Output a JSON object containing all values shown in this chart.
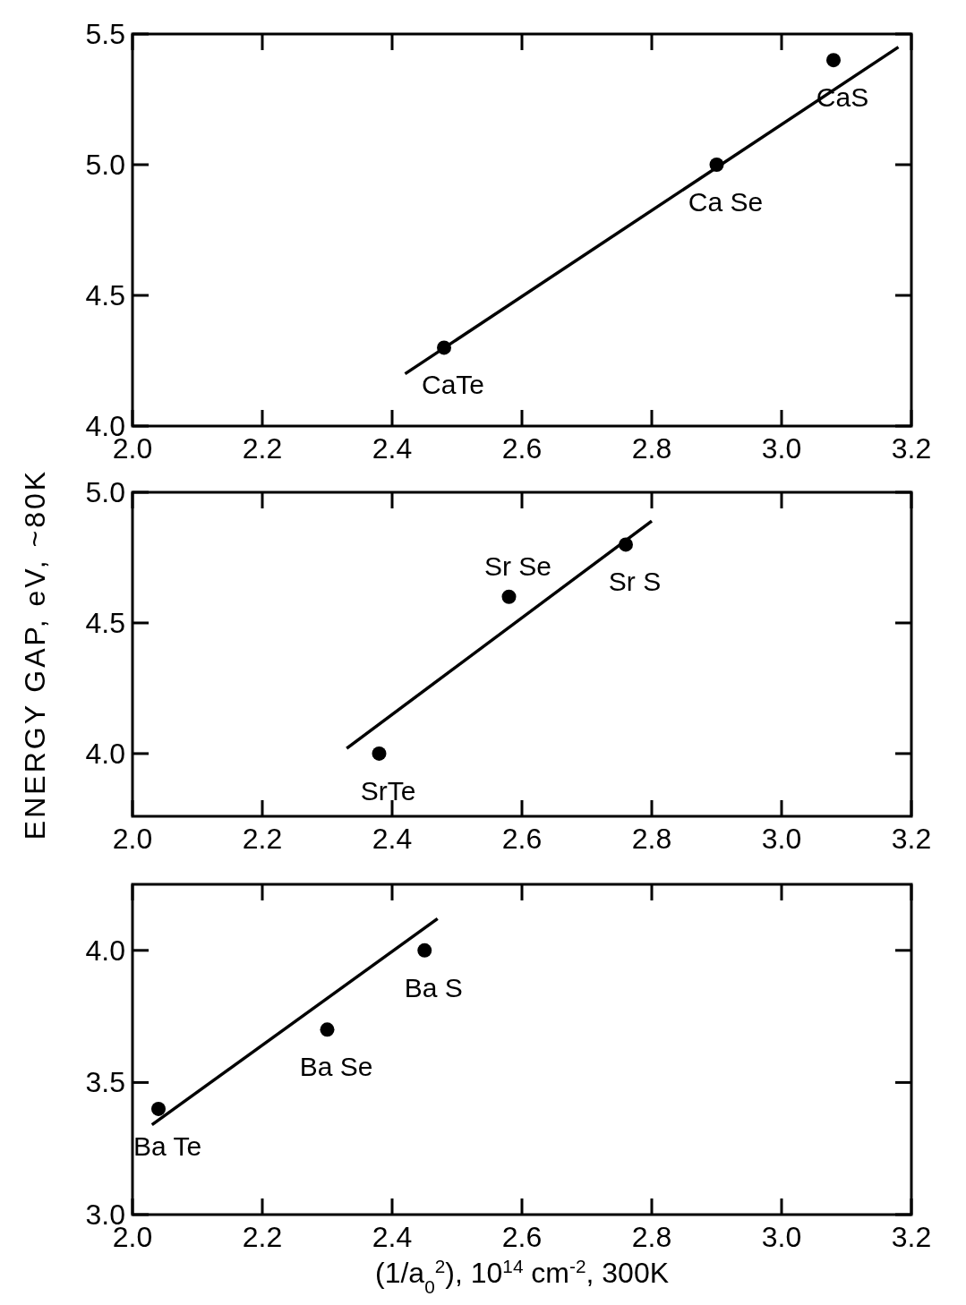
{
  "chart_data": [
    {
      "type": "scatter",
      "xlim": [
        2.0,
        3.2
      ],
      "ylim": [
        4.0,
        5.5
      ],
      "grid": false,
      "xticks": [
        {
          "value": 2.0,
          "label": "2.0"
        },
        {
          "value": 2.2,
          "label": "2.2"
        },
        {
          "value": 2.4,
          "label": "2.4"
        },
        {
          "value": 2.6,
          "label": "2.6"
        },
        {
          "value": 2.8,
          "label": "2.8"
        },
        {
          "value": 3.0,
          "label": "3.0"
        },
        {
          "value": 3.2,
          "label": "3.2"
        }
      ],
      "yticks": [
        {
          "value": 4.0,
          "label": "4.0"
        },
        {
          "value": 4.5,
          "label": "4.5"
        },
        {
          "value": 5.0,
          "label": "5.0"
        },
        {
          "value": 5.5,
          "label": "5.5"
        }
      ],
      "series": [
        {
          "color": "#000000",
          "marker": "circle",
          "x": [
            2.48,
            2.9,
            3.08
          ],
          "values": [
            4.3,
            5.0,
            5.4
          ]
        },
        {
          "type": "line",
          "color": "#000000",
          "marker": "none",
          "x": [
            2.42,
            3.18
          ],
          "values": [
            4.2,
            5.45
          ]
        }
      ],
      "annotations": [
        {
          "text": "CaTe",
          "x": 2.48,
          "y": 4.3
        },
        {
          "text": "Ca Se",
          "x": 2.9,
          "y": 5.0
        },
        {
          "text": "CaS",
          "x": 3.08,
          "y": 5.4
        }
      ]
    },
    {
      "type": "scatter",
      "xlim": [
        2.0,
        3.2
      ],
      "ylim": [
        3.76,
        5.0
      ],
      "grid": false,
      "ylabel": "ENERGY GAP, eV, ~80K",
      "xticks": [
        {
          "value": 2.0,
          "label": "2.0"
        },
        {
          "value": 2.2,
          "label": "2.2"
        },
        {
          "value": 2.4,
          "label": "2.4"
        },
        {
          "value": 2.6,
          "label": "2.6"
        },
        {
          "value": 2.8,
          "label": "2.8"
        },
        {
          "value": 3.0,
          "label": "3.0"
        },
        {
          "value": 3.2,
          "label": "3.2"
        }
      ],
      "yticks": [
        {
          "value": 4.0,
          "label": "4.0"
        },
        {
          "value": 4.5,
          "label": "4.5"
        },
        {
          "value": 5.0,
          "label": "5.0"
        }
      ],
      "series": [
        {
          "color": "#000000",
          "marker": "circle",
          "x": [
            2.38,
            2.58,
            2.76
          ],
          "values": [
            4.0,
            4.6,
            4.8
          ]
        },
        {
          "type": "line",
          "color": "#000000",
          "marker": "none",
          "x": [
            2.33,
            2.8
          ],
          "values": [
            4.02,
            4.89
          ]
        }
      ],
      "annotations": [
        {
          "text": "SrTe",
          "x": 2.38,
          "y": 4.0
        },
        {
          "text": "Sr Se",
          "x": 2.58,
          "y": 4.6
        },
        {
          "text": "Sr S",
          "x": 2.76,
          "y": 4.8
        }
      ]
    },
    {
      "type": "scatter",
      "xlim": [
        2.0,
        3.2
      ],
      "ylim": [
        3.0,
        4.25
      ],
      "grid": false,
      "xlabel": "(1/a$_{0}$$^{2}$), 10$^{14}$ cm$^{-2}$,  300K",
      "xticks": [
        {
          "value": 2.0,
          "label": "2.0"
        },
        {
          "value": 2.2,
          "label": "2.2"
        },
        {
          "value": 2.4,
          "label": "2.4"
        },
        {
          "value": 2.6,
          "label": "2.6"
        },
        {
          "value": 2.8,
          "label": "2.8"
        },
        {
          "value": 3.0,
          "label": "3.0"
        },
        {
          "value": 3.2,
          "label": "3.2"
        }
      ],
      "yticks": [
        {
          "value": 3.0,
          "label": "3.0"
        },
        {
          "value": 3.5,
          "label": "3.5"
        },
        {
          "value": 4.0,
          "label": "4.0"
        }
      ],
      "series": [
        {
          "color": "#000000",
          "marker": "circle",
          "x": [
            2.04,
            2.3,
            2.45
          ],
          "values": [
            3.4,
            3.7,
            4.0
          ]
        },
        {
          "type": "line",
          "color": "#000000",
          "marker": "none",
          "x": [
            2.03,
            2.47
          ],
          "values": [
            3.34,
            4.12
          ]
        }
      ],
      "annotations": [
        {
          "text": "Ba Te",
          "x": 2.04,
          "y": 3.4
        },
        {
          "text": "Ba Se",
          "x": 2.3,
          "y": 3.7
        },
        {
          "text": "Ba S",
          "x": 2.45,
          "y": 4.0
        }
      ]
    }
  ]
}
